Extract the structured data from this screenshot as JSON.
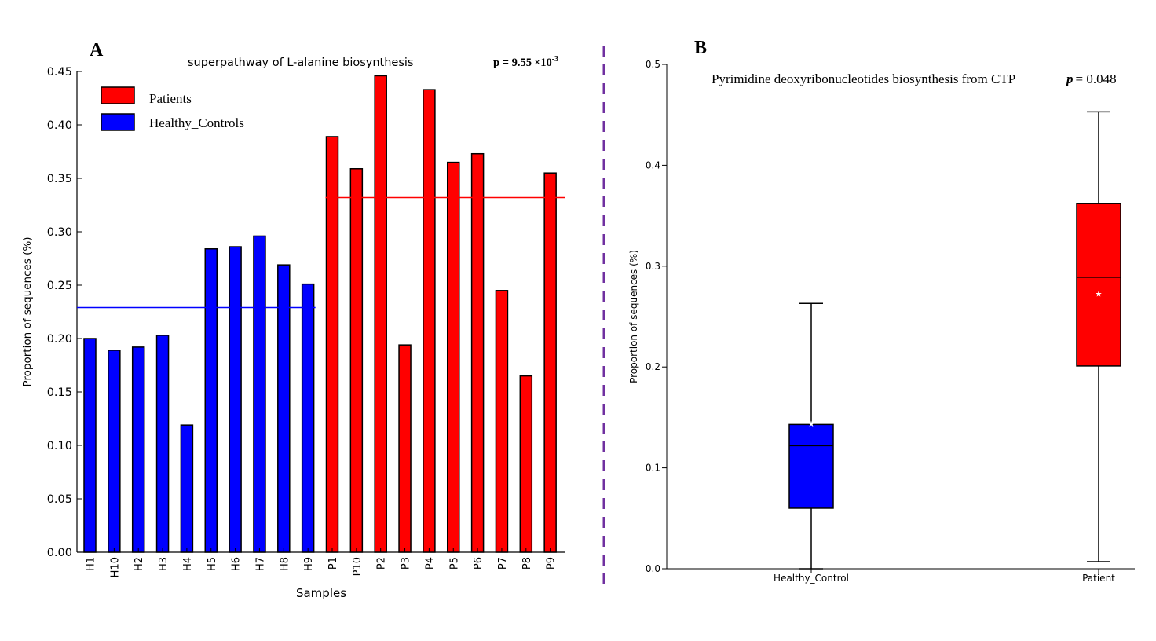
{
  "panels": {
    "a_letter": "A",
    "b_letter": "B"
  },
  "colors": {
    "patients": "#ff0000",
    "healthy": "#0000ff",
    "divider": "#7030a0"
  },
  "chart_data": [
    {
      "type": "bar",
      "title": "superpathway of L-alanine biosynthesis",
      "p_label": "p = 9.55",
      "p_times": "×",
      "p_base": "10",
      "p_exp": "-3",
      "xlabel": "Samples",
      "ylabel": "Proportion of sequences (%)",
      "ylim": [
        0,
        0.45
      ],
      "yticks": [
        "0.00",
        "0.05",
        "0.10",
        "0.15",
        "0.20",
        "0.25",
        "0.30",
        "0.35",
        "0.40",
        "0.45"
      ],
      "legend": [
        {
          "label": "Patients",
          "color": "#ff0000"
        },
        {
          "label": "Healthy_Controls",
          "color": "#0000ff"
        }
      ],
      "legend_position": "top-left",
      "categories": [
        "H1",
        "H10",
        "H2",
        "H3",
        "H4",
        "H5",
        "H6",
        "H7",
        "H8",
        "H9",
        "P1",
        "P10",
        "P2",
        "P3",
        "P4",
        "P5",
        "P6",
        "P7",
        "P8",
        "P9"
      ],
      "values": [
        0.2,
        0.189,
        0.192,
        0.203,
        0.119,
        0.284,
        0.286,
        0.296,
        0.269,
        0.251,
        0.389,
        0.359,
        0.446,
        0.194,
        0.433,
        0.365,
        0.373,
        0.245,
        0.165,
        0.355
      ],
      "groups": [
        "Healthy_Controls",
        "Healthy_Controls",
        "Healthy_Controls",
        "Healthy_Controls",
        "Healthy_Controls",
        "Healthy_Controls",
        "Healthy_Controls",
        "Healthy_Controls",
        "Healthy_Controls",
        "Healthy_Controls",
        "Patients",
        "Patients",
        "Patients",
        "Patients",
        "Patients",
        "Patients",
        "Patients",
        "Patients",
        "Patients",
        "Patients"
      ],
      "group_means": {
        "Healthy_Controls": 0.229,
        "Patients": 0.332
      }
    },
    {
      "type": "box",
      "title": "Pyrimidine deoxyribonucleotides biosynthesis from CTP",
      "p_symbol": "p",
      "p_value": "= 0.048",
      "ylabel": "Proportion of sequences (%)",
      "ylim": [
        0,
        0.5
      ],
      "yticks": [
        "0.0",
        "0.1",
        "0.2",
        "0.3",
        "0.4",
        "0.5"
      ],
      "categories": [
        "Healthy_Control",
        "Patient"
      ],
      "boxes": [
        {
          "name": "Healthy_Control",
          "color": "#0000ff",
          "whisker_low": 0.0,
          "q1": 0.06,
          "median": 0.122,
          "q3": 0.143,
          "whisker_high": 0.263,
          "mean": 0.144
        },
        {
          "name": "Patient",
          "color": "#ff0000",
          "whisker_low": 0.007,
          "q1": 0.201,
          "median": 0.289,
          "q3": 0.362,
          "whisker_high": 0.453,
          "mean": 0.273
        }
      ]
    }
  ]
}
